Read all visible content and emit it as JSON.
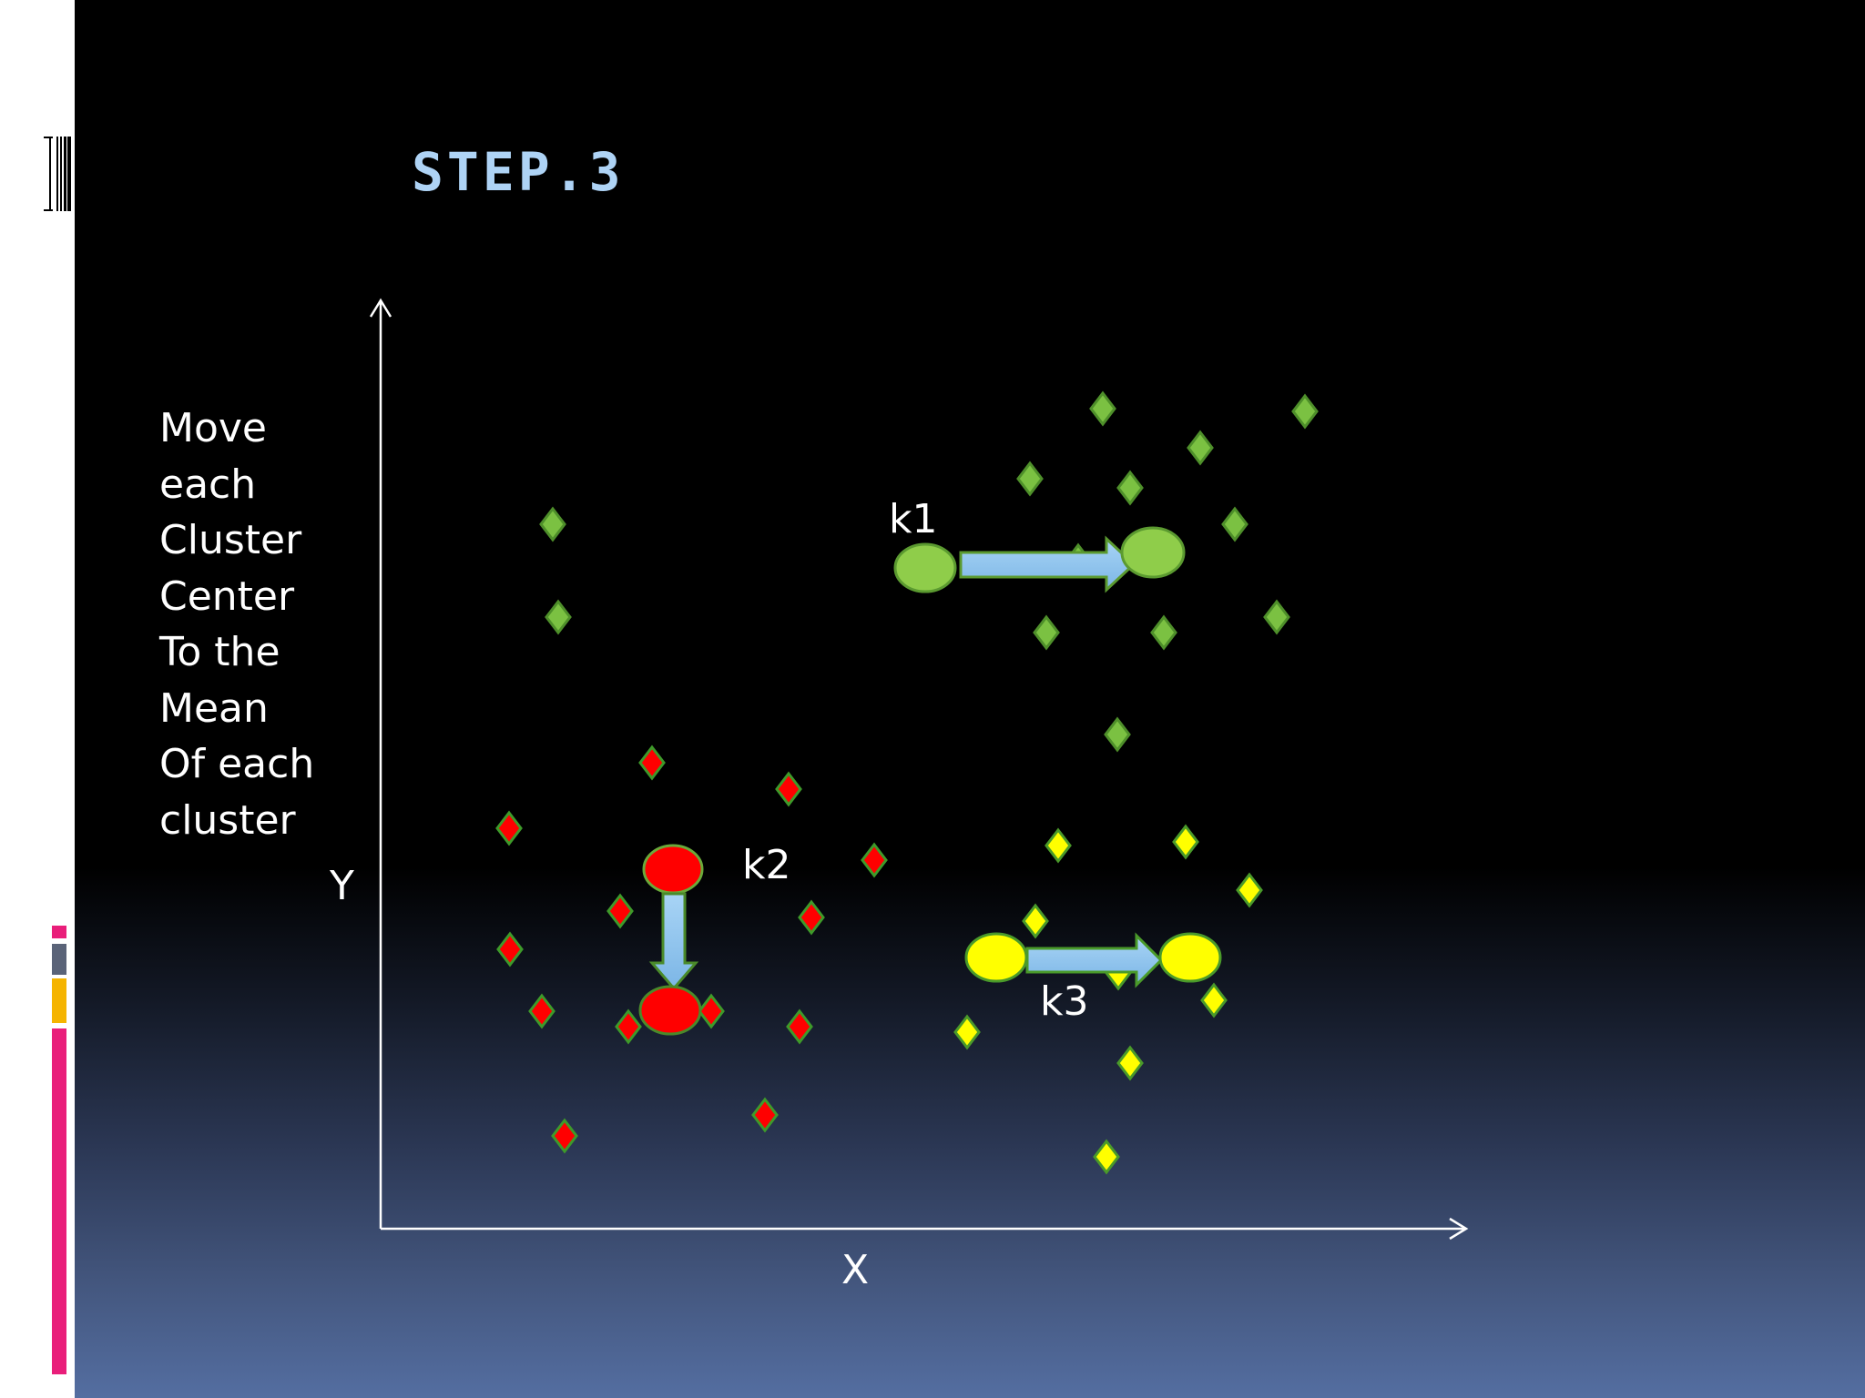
{
  "slide": {
    "title": "STEP.3",
    "body_lines": [
      "Move",
      "each",
      "Cluster",
      "Center",
      "To the",
      "Mean",
      "Of each",
      "cluster"
    ],
    "background_top_color": "#000000",
    "background_bottom_color": "#546ea1",
    "title_color": "#aed3f5"
  },
  "diagram": {
    "x_axis_label": "X",
    "y_axis_label": "Y",
    "clusters": [
      {
        "name": "k1",
        "color": "#7bc142",
        "label": "k1"
      },
      {
        "name": "k2",
        "color": "#ff0000",
        "label": "k2"
      },
      {
        "name": "k3",
        "color": "#ffff00",
        "label": "k3"
      }
    ],
    "arrow_color": "#8fc3ec",
    "decor_colors": [
      "#e91e7a",
      "#5a6378",
      "#f5b400"
    ]
  }
}
